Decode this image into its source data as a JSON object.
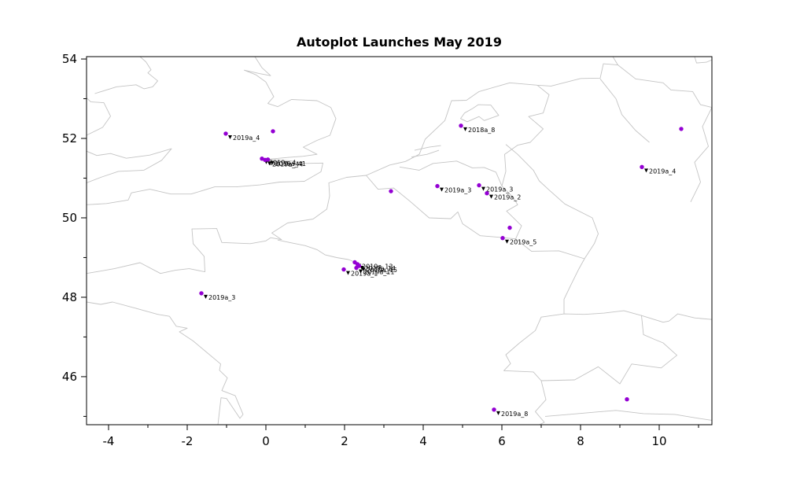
{
  "chart_data": {
    "type": "scatter",
    "title": "Autoplot Launches May 2019",
    "xlabel": "",
    "ylabel": "",
    "xlim": [
      -4.56,
      11.34
    ],
    "ylim": [
      44.79,
      54.06
    ],
    "x_ticks": [
      -4,
      -2,
      0,
      2,
      4,
      6,
      8,
      10
    ],
    "y_ticks": [
      46,
      48,
      50,
      52,
      54
    ],
    "grid": false,
    "legend": null,
    "marker_color": "#9400D3",
    "map_line_color": "#c4c4c4",
    "points": [
      {
        "lon": -1.02,
        "lat": 52.12,
        "label": "2019a_4"
      },
      {
        "lon": 0.18,
        "lat": 52.18,
        "label": ""
      },
      {
        "lon": -0.1,
        "lat": 51.49,
        "label": "2019a_4"
      },
      {
        "lon": -0.02,
        "lat": 51.46,
        "label": "2019a_44"
      },
      {
        "lon": 0.05,
        "lat": 51.47,
        "label": "2019a_41"
      },
      {
        "lon": 3.18,
        "lat": 50.67,
        "label": ""
      },
      {
        "lon": 4.36,
        "lat": 50.8,
        "label": "2019a_3"
      },
      {
        "lon": 4.96,
        "lat": 52.32,
        "label": "2018a_8"
      },
      {
        "lon": 5.42,
        "lat": 50.82,
        "label": "2019a_3"
      },
      {
        "lon": 5.62,
        "lat": 50.62,
        "label": "2019a_2"
      },
      {
        "lon": 6.2,
        "lat": 49.75,
        "label": ""
      },
      {
        "lon": 6.02,
        "lat": 49.49,
        "label": "2019a_5"
      },
      {
        "lon": 9.56,
        "lat": 51.28,
        "label": "2019a_4"
      },
      {
        "lon": 10.56,
        "lat": 52.24,
        "label": ""
      },
      {
        "lon": 1.98,
        "lat": 48.7,
        "label": "2019a_1"
      },
      {
        "lon": 2.26,
        "lat": 48.88,
        "label": "2019a_13"
      },
      {
        "lon": 2.33,
        "lat": 48.83,
        "label": "2019a_14"
      },
      {
        "lon": 2.37,
        "lat": 48.79,
        "label": "2019a_15"
      },
      {
        "lon": 2.3,
        "lat": 48.74,
        "label": "2019a_11"
      },
      {
        "lon": -1.64,
        "lat": 48.1,
        "label": "2019a_3"
      },
      {
        "lon": 5.8,
        "lat": 45.17,
        "label": "2019a_8"
      },
      {
        "lon": 9.18,
        "lat": 45.43,
        "label": ""
      }
    ],
    "map_outlines": [
      [
        [
          -4.56,
          50.33
        ],
        [
          -4.05,
          50.36
        ],
        [
          -3.5,
          50.45
        ],
        [
          -3.42,
          50.63
        ],
        [
          -2.95,
          50.72
        ],
        [
          -2.42,
          50.6
        ],
        [
          -1.9,
          50.6
        ],
        [
          -1.3,
          50.78
        ],
        [
          -0.75,
          50.78
        ],
        [
          -0.15,
          50.83
        ],
        [
          0.35,
          50.9
        ],
        [
          0.98,
          50.92
        ],
        [
          1.4,
          51.16
        ],
        [
          1.45,
          51.38
        ],
        [
          1.0,
          51.37
        ],
        [
          0.6,
          51.44
        ],
        [
          0.0,
          51.47
        ],
        [
          0.55,
          51.52
        ],
        [
          0.95,
          51.55
        ],
        [
          1.3,
          51.6
        ],
        [
          0.95,
          51.78
        ],
        [
          1.3,
          51.95
        ],
        [
          1.63,
          52.08
        ],
        [
          1.78,
          52.5
        ],
        [
          1.65,
          52.78
        ],
        [
          1.3,
          52.95
        ],
        [
          0.65,
          52.98
        ],
        [
          0.3,
          52.8
        ],
        [
          0.05,
          52.88
        ],
        [
          0.2,
          53.05
        ],
        [
          0.0,
          53.42
        ],
        [
          -0.25,
          53.6
        ],
        [
          -0.55,
          53.72
        ],
        [
          -0.15,
          53.63
        ],
        [
          0.12,
          53.58
        ],
        [
          -0.1,
          53.78
        ],
        [
          -0.28,
          54.06
        ]
      ],
      [
        [
          -4.56,
          50.88
        ],
        [
          -4.2,
          51.02
        ],
        [
          -3.75,
          51.17
        ],
        [
          -3.1,
          51.2
        ],
        [
          -2.65,
          51.45
        ],
        [
          -2.4,
          51.74
        ],
        [
          -2.95,
          51.58
        ],
        [
          -3.55,
          51.5
        ],
        [
          -3.95,
          51.62
        ],
        [
          -4.3,
          51.57
        ],
        [
          -4.56,
          51.68
        ]
      ],
      [
        [
          -4.56,
          52.08
        ],
        [
          -4.15,
          52.28
        ],
        [
          -3.95,
          52.56
        ],
        [
          -4.12,
          52.9
        ],
        [
          -4.45,
          52.92
        ],
        [
          -4.56,
          53.02
        ]
      ],
      [
        [
          -4.35,
          53.13
        ],
        [
          -3.8,
          53.3
        ],
        [
          -3.3,
          53.35
        ],
        [
          -3.1,
          53.25
        ],
        [
          -2.88,
          53.3
        ],
        [
          -2.75,
          53.45
        ],
        [
          -3.0,
          53.65
        ],
        [
          -2.92,
          53.73
        ],
        [
          -3.05,
          53.93
        ],
        [
          -3.2,
          54.06
        ]
      ],
      [
        [
          -4.56,
          48.6
        ],
        [
          -4.25,
          48.65
        ],
        [
          -3.85,
          48.72
        ],
        [
          -3.2,
          48.87
        ],
        [
          -2.68,
          48.6
        ],
        [
          -2.3,
          48.68
        ],
        [
          -1.95,
          48.72
        ],
        [
          -1.55,
          48.64
        ],
        [
          -1.57,
          49.03
        ],
        [
          -1.85,
          49.35
        ],
        [
          -1.88,
          49.72
        ],
        [
          -1.25,
          49.73
        ],
        [
          -1.12,
          49.38
        ],
        [
          -0.4,
          49.35
        ],
        [
          0.0,
          49.42
        ],
        [
          0.12,
          49.5
        ],
        [
          0.4,
          49.45
        ],
        [
          0.15,
          49.62
        ],
        [
          0.55,
          49.87
        ],
        [
          1.2,
          49.97
        ],
        [
          1.55,
          50.22
        ],
        [
          1.62,
          50.55
        ],
        [
          1.6,
          50.88
        ],
        [
          2.05,
          51.02
        ],
        [
          2.55,
          51.07
        ],
        [
          3.15,
          51.33
        ],
        [
          3.55,
          51.42
        ]
      ],
      [
        [
          -4.56,
          47.88
        ],
        [
          -4.2,
          47.82
        ],
        [
          -3.9,
          47.88
        ],
        [
          -3.3,
          47.72
        ],
        [
          -2.75,
          47.57
        ],
        [
          -2.45,
          47.52
        ],
        [
          -2.28,
          47.27
        ],
        [
          -2.0,
          47.22
        ],
        [
          -2.2,
          47.13
        ],
        [
          -1.85,
          46.9
        ],
        [
          -1.15,
          46.32
        ],
        [
          -1.18,
          46.16
        ],
        [
          -0.98,
          45.97
        ],
        [
          -1.12,
          45.65
        ],
        [
          -0.78,
          45.52
        ],
        [
          -0.58,
          45.05
        ],
        [
          -0.66,
          44.95
        ],
        [
          -1.0,
          45.45
        ],
        [
          -1.14,
          45.47
        ],
        [
          -1.22,
          44.79
        ]
      ],
      [
        [
          3.55,
          51.42
        ],
        [
          3.9,
          51.6
        ],
        [
          4.05,
          51.98
        ],
        [
          4.55,
          52.45
        ],
        [
          4.72,
          52.95
        ],
        [
          5.1,
          52.96
        ],
        [
          5.42,
          53.18
        ],
        [
          6.2,
          53.4
        ],
        [
          6.9,
          53.34
        ],
        [
          7.25,
          53.32
        ],
        [
          8.0,
          53.51
        ],
        [
          8.5,
          53.52
        ],
        [
          8.58,
          53.88
        ],
        [
          8.95,
          53.85
        ],
        [
          8.82,
          54.06
        ]
      ],
      [
        [
          5.05,
          52.64
        ],
        [
          5.25,
          52.75
        ],
        [
          5.4,
          52.85
        ],
        [
          5.72,
          52.84
        ],
        [
          5.92,
          52.58
        ],
        [
          5.55,
          52.45
        ],
        [
          5.42,
          52.55
        ],
        [
          5.12,
          52.42
        ],
        [
          4.95,
          52.5
        ],
        [
          5.05,
          52.64
        ]
      ],
      [
        [
          3.7,
          51.53
        ],
        [
          4.1,
          51.6
        ],
        [
          4.4,
          51.7
        ]
      ],
      [
        [
          3.78,
          51.7
        ],
        [
          4.15,
          51.78
        ],
        [
          4.45,
          51.82
        ]
      ],
      [
        [
          2.55,
          51.07
        ],
        [
          2.85,
          50.72
        ],
        [
          3.25,
          50.75
        ],
        [
          3.65,
          50.43
        ],
        [
          4.15,
          50.0
        ],
        [
          4.7,
          49.98
        ],
        [
          4.88,
          50.15
        ],
        [
          5.0,
          49.85
        ],
        [
          5.45,
          49.55
        ],
        [
          5.82,
          49.52
        ],
        [
          6.35,
          49.47
        ]
      ],
      [
        [
          3.4,
          51.28
        ],
        [
          3.9,
          51.2
        ],
        [
          4.25,
          51.37
        ],
        [
          4.85,
          51.43
        ],
        [
          5.25,
          51.26
        ],
        [
          5.55,
          51.27
        ],
        [
          5.85,
          51.15
        ],
        [
          6.0,
          50.8
        ]
      ],
      [
        [
          6.0,
          50.8
        ],
        [
          6.3,
          50.5
        ],
        [
          6.4,
          50.33
        ],
        [
          6.12,
          50.17
        ],
        [
          6.5,
          49.8
        ],
        [
          6.35,
          49.47
        ]
      ],
      [
        [
          6.0,
          50.8
        ],
        [
          6.1,
          51.17
        ],
        [
          6.07,
          51.6
        ],
        [
          6.4,
          51.83
        ],
        [
          6.72,
          51.9
        ],
        [
          7.05,
          52.24
        ],
        [
          6.68,
          52.55
        ],
        [
          7.05,
          52.64
        ],
        [
          7.2,
          53.1
        ],
        [
          6.9,
          53.34
        ]
      ],
      [
        [
          6.35,
          49.47
        ],
        [
          6.75,
          49.16
        ],
        [
          7.45,
          49.17
        ],
        [
          8.1,
          48.97
        ],
        [
          7.95,
          48.7
        ],
        [
          7.75,
          48.3
        ],
        [
          7.58,
          47.95
        ],
        [
          7.58,
          47.58
        ]
      ],
      [
        [
          7.58,
          47.58
        ],
        [
          8.1,
          47.57
        ],
        [
          8.6,
          47.6
        ],
        [
          9.1,
          47.66
        ],
        [
          9.55,
          47.54
        ],
        [
          9.6,
          47.06
        ],
        [
          9.88,
          46.94
        ],
        [
          10.1,
          46.85
        ],
        [
          10.45,
          46.54
        ],
        [
          10.05,
          46.22
        ],
        [
          9.3,
          46.32
        ],
        [
          9.0,
          45.82
        ],
        [
          8.45,
          46.25
        ],
        [
          7.85,
          45.92
        ],
        [
          7.0,
          45.9
        ],
        [
          6.8,
          46.12
        ],
        [
          6.05,
          46.15
        ],
        [
          6.22,
          46.33
        ],
        [
          6.1,
          46.55
        ],
        [
          6.45,
          46.85
        ],
        [
          6.85,
          47.16
        ],
        [
          7.0,
          47.5
        ],
        [
          7.58,
          47.58
        ]
      ],
      [
        [
          7.0,
          45.9
        ],
        [
          7.12,
          45.42
        ],
        [
          6.85,
          45.12
        ],
        [
          7.08,
          44.85
        ],
        [
          6.95,
          44.79
        ]
      ],
      [
        [
          8.1,
          48.97
        ],
        [
          8.35,
          49.35
        ],
        [
          8.45,
          49.6
        ],
        [
          8.3,
          50.0
        ],
        [
          7.6,
          50.35
        ],
        [
          7.2,
          50.7
        ],
        [
          6.95,
          50.93
        ],
        [
          6.8,
          51.2
        ],
        [
          6.4,
          51.6
        ],
        [
          6.1,
          51.85
        ]
      ],
      [
        [
          0.3,
          49.44
        ],
        [
          0.7,
          49.36
        ],
        [
          1.0,
          49.3
        ],
        [
          1.3,
          49.2
        ],
        [
          1.5,
          49.07
        ],
        [
          1.8,
          49.0
        ],
        [
          2.1,
          48.95
        ],
        [
          2.35,
          48.85
        ]
      ],
      [
        [
          8.95,
          53.85
        ],
        [
          9.4,
          53.5
        ],
        [
          10.1,
          53.4
        ],
        [
          10.3,
          53.22
        ],
        [
          10.85,
          53.18
        ],
        [
          11.05,
          52.85
        ],
        [
          11.34,
          52.78
        ]
      ],
      [
        [
          8.5,
          53.5
        ],
        [
          8.9,
          53.0
        ],
        [
          9.05,
          52.6
        ],
        [
          9.4,
          52.2
        ],
        [
          9.75,
          51.9
        ]
      ],
      [
        [
          10.9,
          54.06
        ],
        [
          10.95,
          53.9
        ],
        [
          11.2,
          53.92
        ],
        [
          11.34,
          53.98
        ]
      ],
      [
        [
          9.55,
          47.54
        ],
        [
          10.1,
          47.37
        ],
        [
          10.25,
          47.4
        ],
        [
          10.47,
          47.58
        ],
        [
          10.9,
          47.48
        ],
        [
          11.34,
          47.44
        ]
      ],
      [
        [
          11.34,
          52.78
        ],
        [
          11.1,
          52.3
        ],
        [
          11.25,
          51.8
        ],
        [
          10.9,
          51.4
        ],
        [
          11.05,
          50.9
        ],
        [
          10.8,
          50.4
        ]
      ],
      [
        [
          7.1,
          45.0
        ],
        [
          7.7,
          45.05
        ],
        [
          8.3,
          45.1
        ],
        [
          8.9,
          45.15
        ],
        [
          9.6,
          45.07
        ],
        [
          10.4,
          45.05
        ],
        [
          11.0,
          44.95
        ],
        [
          11.34,
          44.9
        ]
      ]
    ]
  }
}
